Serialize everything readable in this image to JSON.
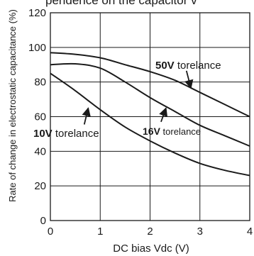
{
  "chart_data": {
    "type": "line",
    "xlabel": "DC bias Vdc (V)",
    "ylabel": "Rate of change in electrostatic capacitance (%)",
    "xlim": [
      0,
      4
    ],
    "ylim": [
      0,
      120
    ],
    "xticks": [
      "0",
      "1",
      "2",
      "3",
      "4"
    ],
    "yticks": [
      "0",
      "20",
      "40",
      "60",
      "80",
      "100",
      "120"
    ],
    "grid": true,
    "series": [
      {
        "name": "10V torelance",
        "bold": "10V",
        "rest": "torelance",
        "points": [
          [
            0,
            85
          ],
          [
            0.5,
            75
          ],
          [
            1,
            64
          ],
          [
            1.5,
            54
          ],
          [
            2,
            46
          ],
          [
            2.5,
            39
          ],
          [
            3,
            33
          ],
          [
            3.5,
            29
          ],
          [
            4,
            26
          ]
        ]
      },
      {
        "name": "16V torelance",
        "bold": "16V",
        "rest": "torelance",
        "points": [
          [
            0,
            90
          ],
          [
            0.5,
            90.5
          ],
          [
            1,
            88
          ],
          [
            1.5,
            80
          ],
          [
            2,
            71
          ],
          [
            2.5,
            63
          ],
          [
            3,
            55
          ],
          [
            3.5,
            49
          ],
          [
            4,
            43
          ]
        ]
      },
      {
        "name": "50V torelance",
        "bold": "50V",
        "rest": "torelance",
        "points": [
          [
            0,
            97
          ],
          [
            0.5,
            96
          ],
          [
            1,
            94
          ],
          [
            1.5,
            90
          ],
          [
            2,
            86
          ],
          [
            2.5,
            81
          ],
          [
            3,
            74
          ],
          [
            3.5,
            67
          ],
          [
            4,
            60
          ]
        ]
      }
    ],
    "annotations": [
      {
        "series": "10V torelance",
        "arrow_from": [
          0.68,
          55.5
        ],
        "arrow_to": [
          0.76,
          65
        ]
      },
      {
        "series": "16V torelance",
        "arrow_from": [
          2.22,
          57
        ],
        "arrow_to": [
          2.32,
          65
        ]
      },
      {
        "series": "50V torelance",
        "arrow_from": [
          2.73,
          86.5
        ],
        "arrow_to": [
          2.82,
          76.5
        ]
      }
    ],
    "header_fragment": "pendence on the capacitor v"
  }
}
